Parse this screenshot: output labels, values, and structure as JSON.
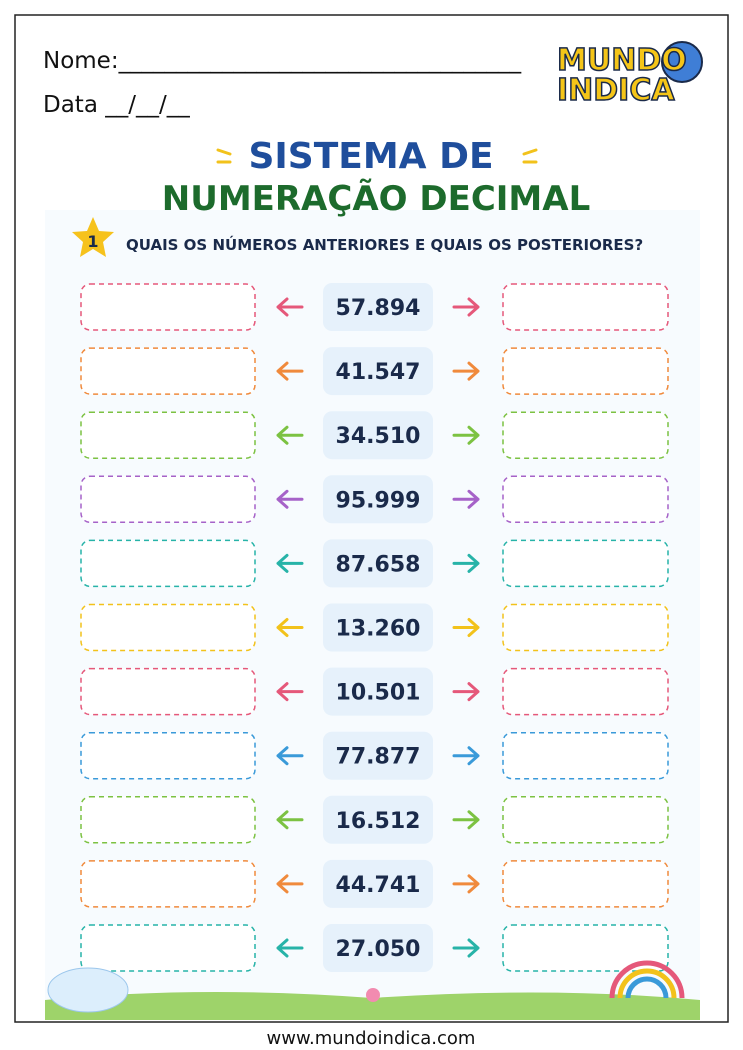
{
  "header": {
    "name_label": "Nome:___________________________________",
    "date_label": "Data __/__/__",
    "logo_top": "MUNDO",
    "logo_bottom": "INDICA"
  },
  "title": {
    "line1": "SISTEMA DE",
    "line2": "NUMERAÇÃO DECIMAL"
  },
  "question": {
    "number": "1",
    "text": "QUAIS OS NÚMEROS ANTERIORES E QUAIS OS POSTERIORES?"
  },
  "rows": [
    {
      "number": "57.894",
      "color": "#e5587a"
    },
    {
      "number": "41.547",
      "color": "#f08a3c"
    },
    {
      "number": "34.510",
      "color": "#7cc242"
    },
    {
      "number": "95.999",
      "color": "#a662c8"
    },
    {
      "number": "87.658",
      "color": "#27b3a8"
    },
    {
      "number": "13.260",
      "color": "#f2c21b"
    },
    {
      "number": "10.501",
      "color": "#e5587a"
    },
    {
      "number": "77.877",
      "color": "#3a9ad9"
    },
    {
      "number": "16.512",
      "color": "#7cc242"
    },
    {
      "number": "44.741",
      "color": "#f08a3c"
    },
    {
      "number": "27.050",
      "color": "#27b3a8"
    }
  ],
  "footer": {
    "url": "www.mundoindica.com"
  }
}
